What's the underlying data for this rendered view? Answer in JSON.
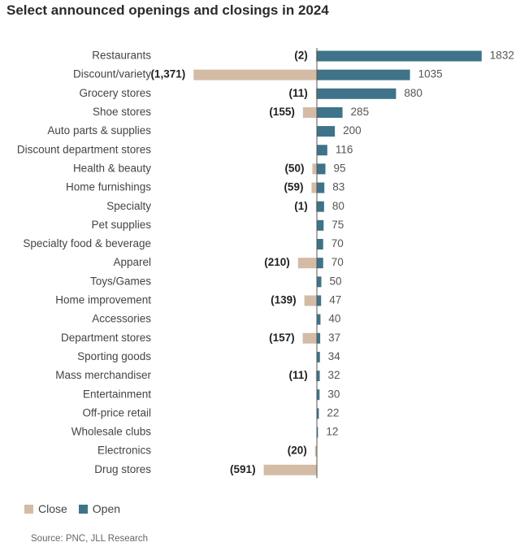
{
  "chart_data": {
    "type": "bar",
    "orientation": "horizontal",
    "title": "Select announced openings and closings in 2024",
    "categories": [
      "Restaurants",
      "Discount/variety",
      "Grocery stores",
      "Shoe stores",
      "Auto parts & supplies",
      "Discount department stores",
      "Health & beauty",
      "Home furnishings",
      "Specialty",
      "Pet supplies",
      "Specialty food & beverage",
      "Apparel",
      "Toys/Games",
      "Home improvement",
      "Accessories",
      "Department stores",
      "Sporting goods",
      "Mass merchandiser",
      "Entertainment",
      "Off-price retail",
      "Wholesale clubs",
      "Electronics",
      "Drug stores"
    ],
    "series": [
      {
        "name": "Close",
        "color": "#d4bba6",
        "values": [
          2,
          1371,
          11,
          155,
          null,
          null,
          50,
          59,
          1,
          null,
          null,
          210,
          null,
          139,
          null,
          157,
          null,
          11,
          null,
          null,
          null,
          20,
          591
        ],
        "labels": [
          "(2)",
          "(1,371)",
          "(11)",
          "(155)",
          null,
          null,
          "(50)",
          "(59)",
          "(1)",
          null,
          null,
          "(210)",
          null,
          "(139)",
          null,
          "(157)",
          null,
          "(11)",
          null,
          null,
          null,
          "(20)",
          "(591)"
        ]
      },
      {
        "name": "Open",
        "color": "#3e7389",
        "values": [
          1832,
          1035,
          880,
          285,
          200,
          116,
          95,
          83,
          80,
          75,
          70,
          70,
          50,
          47,
          40,
          37,
          34,
          32,
          30,
          22,
          12,
          null,
          null
        ],
        "labels": [
          "1832",
          "1035",
          "880",
          "285",
          "200",
          "116",
          "95",
          "83",
          "80",
          "75",
          "70",
          "70",
          "50",
          "47",
          "40",
          "37",
          "34",
          "32",
          "30",
          "22",
          "12",
          null,
          null
        ]
      }
    ],
    "legend": [
      "Close",
      "Open"
    ],
    "xlabel": "",
    "ylabel": ""
  },
  "source": "Source: PNC, JLL Research"
}
